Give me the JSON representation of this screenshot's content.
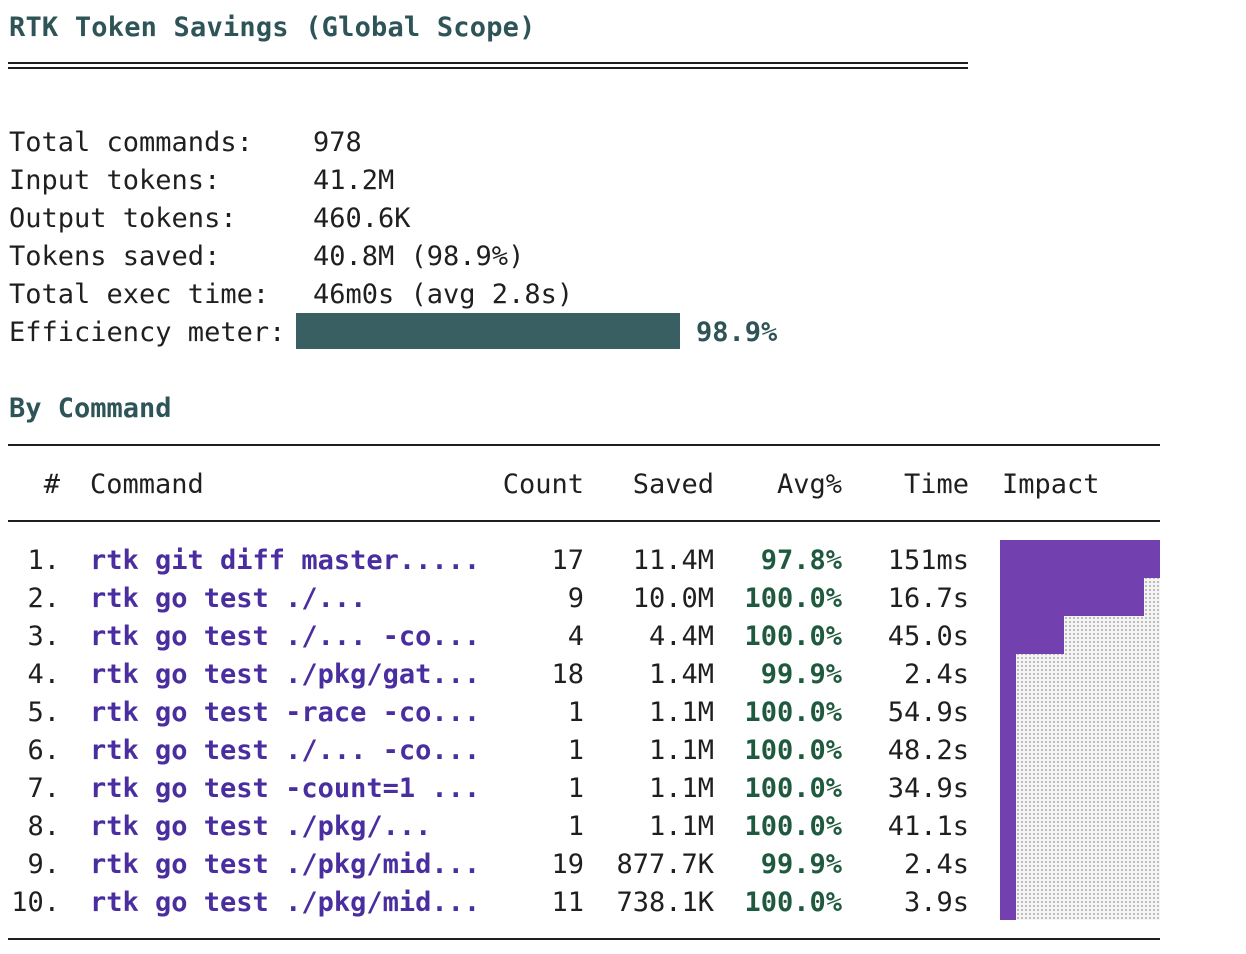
{
  "title": "RTK Token Savings (Global Scope)",
  "summary": [
    {
      "label": "Total commands:",
      "value": "978"
    },
    {
      "label": "Input tokens:",
      "value": "41.2M"
    },
    {
      "label": "Output tokens:",
      "value": "460.6K"
    },
    {
      "label": "Tokens saved:",
      "value": "40.8M (98.9%)"
    },
    {
      "label": "Total exec time:",
      "value": "46m0s (avg 2.8s)"
    }
  ],
  "efficiency": {
    "label": "Efficiency meter:",
    "value": "98.9%",
    "fraction": 0.989
  },
  "section_title": "By Command",
  "table": {
    "headers": {
      "num": "#",
      "command": "Command",
      "count": "Count",
      "saved": "Saved",
      "avg": "Avg%",
      "time": "Time",
      "impact": "Impact"
    },
    "rows": [
      {
        "num": "1.",
        "command": "rtk git diff master.....",
        "count": "17",
        "saved": "11.4M",
        "avg": "97.8%",
        "time": "151ms",
        "impact": 1.0
      },
      {
        "num": "2.",
        "command": "rtk go test ./...",
        "count": "9",
        "saved": "10.0M",
        "avg": "100.0%",
        "time": "16.7s",
        "impact": 0.9
      },
      {
        "num": "3.",
        "command": "rtk go test ./... -co...",
        "count": "4",
        "saved": "4.4M",
        "avg": "100.0%",
        "time": "45.0s",
        "impact": 0.4
      },
      {
        "num": "4.",
        "command": "rtk go test ./pkg/gat...",
        "count": "18",
        "saved": "1.4M",
        "avg": "99.9%",
        "time": "2.4s",
        "impact": 0.1
      },
      {
        "num": "5.",
        "command": "rtk go test -race -co...",
        "count": "1",
        "saved": "1.1M",
        "avg": "100.0%",
        "time": "54.9s",
        "impact": 0.1
      },
      {
        "num": "6.",
        "command": "rtk go test ./... -co...",
        "count": "1",
        "saved": "1.1M",
        "avg": "100.0%",
        "time": "48.2s",
        "impact": 0.1
      },
      {
        "num": "7.",
        "command": "rtk go test -count=1 ...",
        "count": "1",
        "saved": "1.1M",
        "avg": "100.0%",
        "time": "34.9s",
        "impact": 0.1
      },
      {
        "num": "8.",
        "command": "rtk go test ./pkg/...",
        "count": "1",
        "saved": "1.1M",
        "avg": "100.0%",
        "time": "41.1s",
        "impact": 0.1
      },
      {
        "num": "9.",
        "command": "rtk go test ./pkg/mid...",
        "count": "19",
        "saved": "877.7K",
        "avg": "99.9%",
        "time": "2.4s",
        "impact": 0.1
      },
      {
        "num": "10.",
        "command": "rtk go test ./pkg/mid...",
        "count": "11",
        "saved": "738.1K",
        "avg": "100.0%",
        "time": "3.9s",
        "impact": 0.1
      }
    ]
  },
  "colors": {
    "heading": "#2e5457",
    "meter": "#3a5f63",
    "command": "#4a2ea0",
    "avg": "#1f5a3e",
    "impact": "#7340b0"
  }
}
